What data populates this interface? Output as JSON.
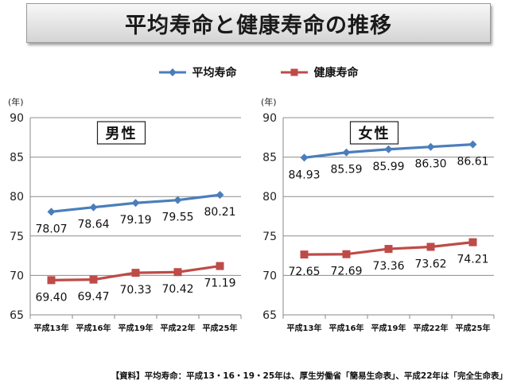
{
  "header": {
    "title": "平均寿命と健康寿命の推移"
  },
  "legend": [
    {
      "label": "平均寿命",
      "color": "#4a7ebb"
    },
    {
      "label": "健康寿命",
      "color": "#be4b48"
    }
  ],
  "chart_data": [
    {
      "type": "line",
      "title": "男性",
      "ylabel": "(年)",
      "ylim": [
        65,
        90
      ],
      "yticks": [
        65,
        70,
        75,
        80,
        85,
        90
      ],
      "categories": [
        "平成13年",
        "平成16年",
        "平成19年",
        "平成22年",
        "平成25年"
      ],
      "grid": true,
      "series": [
        {
          "name": "平均寿命",
          "color": "#4a7ebb",
          "marker": "diamond",
          "values": [
            78.07,
            78.64,
            79.19,
            79.55,
            80.21
          ]
        },
        {
          "name": "健康寿命",
          "color": "#be4b48",
          "marker": "square",
          "values": [
            69.4,
            69.47,
            70.33,
            70.42,
            71.19
          ]
        }
      ]
    },
    {
      "type": "line",
      "title": "女性",
      "ylabel": "(年)",
      "ylim": [
        65,
        90
      ],
      "yticks": [
        65,
        70,
        75,
        80,
        85,
        90
      ],
      "categories": [
        "平成13年",
        "平成16年",
        "平成19年",
        "平成22年",
        "平成25年"
      ],
      "grid": true,
      "series": [
        {
          "name": "平均寿命",
          "color": "#4a7ebb",
          "marker": "diamond",
          "values": [
            84.93,
            85.59,
            85.99,
            86.3,
            86.61
          ]
        },
        {
          "name": "健康寿命",
          "color": "#be4b48",
          "marker": "square",
          "values": [
            72.65,
            72.69,
            73.36,
            73.62,
            74.21
          ]
        }
      ]
    }
  ],
  "footer": {
    "source": "【資料】平均寿命：平成13・16・19・25年は、厚生労働省「簡易生命表」、平成22年は「完全生命表」"
  }
}
